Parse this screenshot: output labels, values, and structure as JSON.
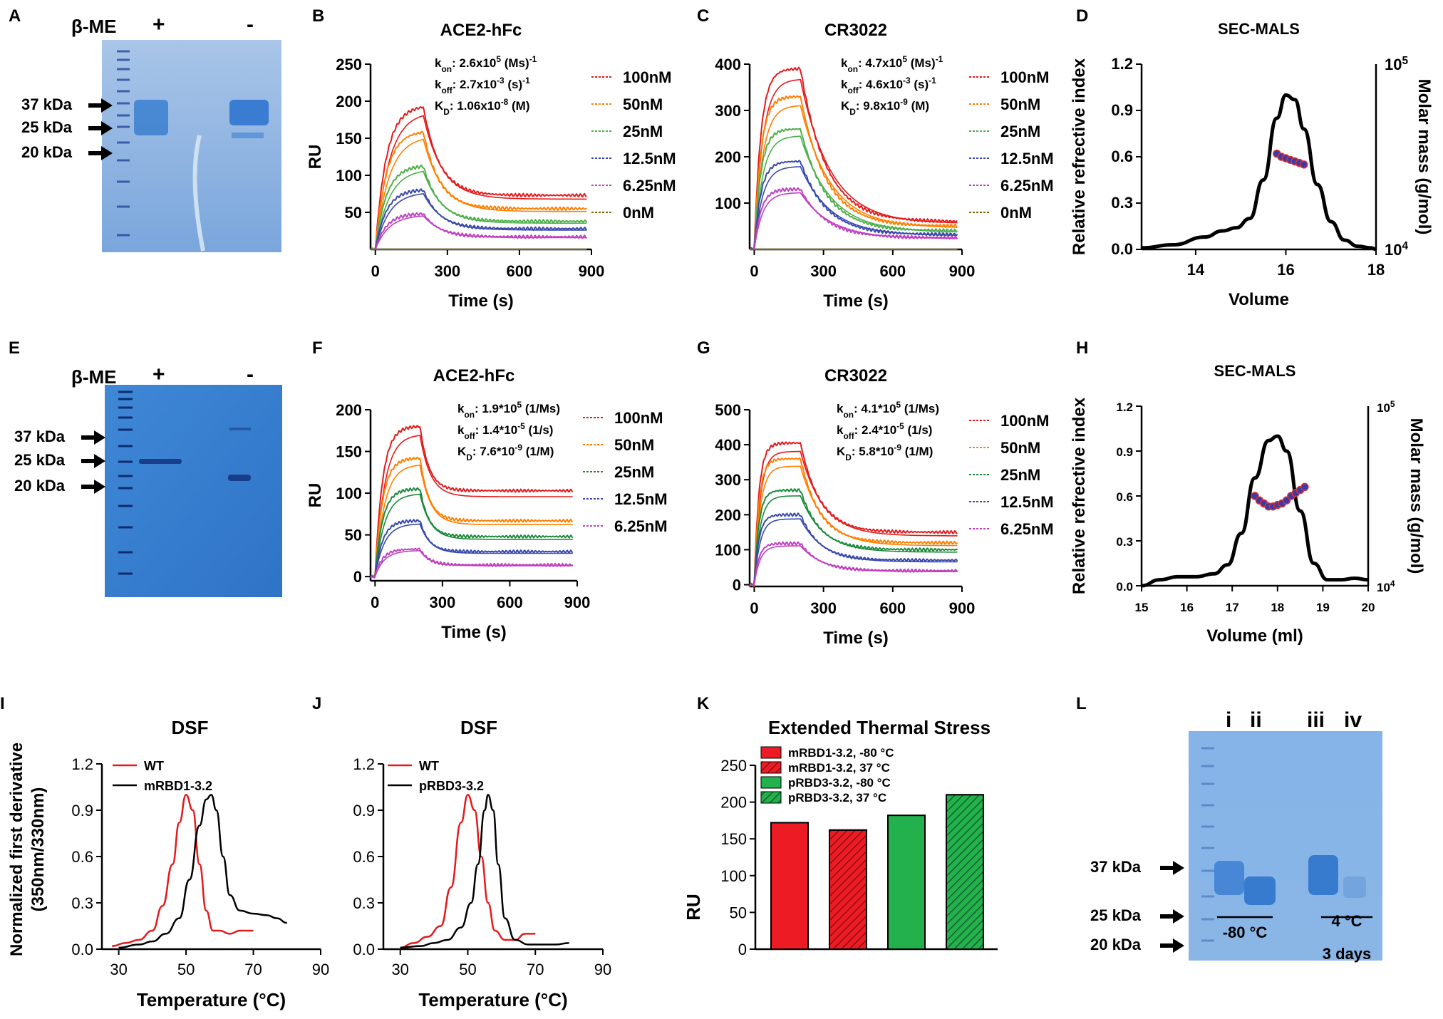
{
  "figure": {
    "panel_letters": [
      "A",
      "B",
      "C",
      "D",
      "E",
      "F",
      "G",
      "H",
      "I",
      "J",
      "K",
      "L"
    ],
    "gels": {
      "A": {
        "header": "β-ME",
        "lanes": [
          "+",
          "-"
        ],
        "markers": [
          "37 kDa",
          "25 kDa",
          "20 kDa"
        ]
      },
      "E": {
        "header": "β-ME",
        "lanes": [
          "+",
          "-"
        ],
        "markers": [
          "37 kDa",
          "25 kDa",
          "20 kDa"
        ]
      },
      "L": {
        "lanes": [
          "i",
          "ii",
          "iii",
          "iv"
        ],
        "markers": [
          "37 kDa",
          "25 kDa",
          "20 kDa"
        ],
        "group1": "-80 °C",
        "group2": "4 °C",
        "group2_sub": "3 days"
      }
    }
  },
  "chart_data": [
    {
      "id": "B",
      "type": "line",
      "title": "ACE2-hFc",
      "xlabel": "Time (s)",
      "ylabel": "RU",
      "xlim": [
        -20,
        900
      ],
      "ylim": [
        0,
        250
      ],
      "xticks": [
        "0",
        "300",
        "600",
        "900"
      ],
      "yticks": [
        "50",
        "100",
        "150",
        "200",
        "250"
      ],
      "kinetics": {
        "kon": "k<sub>on</sub>: 2.6x10<sup>5</sup> (Ms)<sup>-1</sup>",
        "koff": "k<sub>off</sub>: 2.7x10<sup>-3</sup> (s)<sup>-1</sup>",
        "kd": "K<sub>D</sub>: 1.06x10<sup>-8</sup> (M)"
      },
      "model": {
        "t_assoc": 200,
        "k_assoc": 0.022
      },
      "series": [
        {
          "name": "100nM",
          "color": "#e41a1c",
          "peak": 192,
          "plateau": 73,
          "k_dis": 0.015
        },
        {
          "name": "50nM",
          "color": "#ff7f00",
          "peak": 158,
          "plateau": 55,
          "k_dis": 0.015
        },
        {
          "name": "25nM",
          "color": "#4daf4a",
          "peak": 112,
          "plateau": 38,
          "k_dis": 0.015
        },
        {
          "name": "12.5nM",
          "color": "#3949ab",
          "peak": 80,
          "plateau": 28,
          "k_dis": 0.015
        },
        {
          "name": "6.25nM",
          "color": "#c040c0",
          "peak": 48,
          "plateau": 17,
          "k_dis": 0.015
        },
        {
          "name": "0nM",
          "color": "#7a6a00",
          "peak": 0,
          "plateau": 0,
          "k_dis": 0.015
        }
      ]
    },
    {
      "id": "C",
      "type": "line",
      "title": "CR3022",
      "xlabel": "Time (s)",
      "ylabel": "",
      "xlim": [
        -20,
        900
      ],
      "ylim": [
        0,
        400
      ],
      "xticks": [
        "0",
        "300",
        "600",
        "900"
      ],
      "yticks": [
        "100",
        "200",
        "300",
        "400"
      ],
      "kinetics": {
        "kon": "k<sub>on</sub>: 4.7x10<sup>5</sup> (Ms)<sup>-1</sup>",
        "koff": "k<sub>off</sub>: 4.6x10<sup>-3</sup> (s)<sup>-1</sup>",
        "kd": "K<sub>D</sub>: 9.8x10<sup>-9</sup> (M)"
      },
      "model": {
        "t_assoc": 200,
        "k_assoc": 0.035
      },
      "series": [
        {
          "name": "100nM",
          "color": "#e41a1c",
          "peak": 390,
          "plateau": 60,
          "k_dis": 0.009
        },
        {
          "name": "50nM",
          "color": "#ff7f00",
          "peak": 330,
          "plateau": 50,
          "k_dis": 0.009
        },
        {
          "name": "25nM",
          "color": "#4daf4a",
          "peak": 260,
          "plateau": 40,
          "k_dis": 0.009
        },
        {
          "name": "12.5nM",
          "color": "#3949ab",
          "peak": 190,
          "plateau": 32,
          "k_dis": 0.009
        },
        {
          "name": "6.25nM",
          "color": "#c040c0",
          "peak": 130,
          "plateau": 25,
          "k_dis": 0.009
        },
        {
          "name": "0nM",
          "color": "#7a6a00",
          "peak": 0,
          "plateau": 0,
          "k_dis": 0.009
        }
      ]
    },
    {
      "id": "D",
      "type": "line",
      "title": "SEC-MALS",
      "xlabel": "Volume",
      "ylabel": "Relative refrective index",
      "y2label": "Molar mass (g/mol)",
      "xlim": [
        12.8,
        18
      ],
      "ylim": [
        0,
        1.2
      ],
      "xticks": [
        "14",
        "16",
        "18"
      ],
      "xtick_values": [
        14,
        16,
        18
      ],
      "yticks": [
        "0.0",
        "0.3",
        "0.6",
        "0.9",
        "1.2"
      ],
      "y2ticks": [
        "10<sup>4</sup>",
        "10<sup>5</sup>"
      ],
      "trace": {
        "x": [
          12.8,
          13.5,
          14.2,
          14.6,
          14.9,
          15.2,
          15.5,
          15.8,
          16.0,
          16.2,
          16.4,
          16.7,
          17.0,
          17.3,
          17.6,
          17.9,
          18.0
        ],
        "y": [
          0.01,
          0.03,
          0.08,
          0.12,
          0.14,
          0.2,
          0.45,
          0.85,
          1.0,
          0.97,
          0.78,
          0.42,
          0.18,
          0.06,
          0.02,
          0.01,
          0.0
        ]
      },
      "mass": {
        "x": [
          15.8,
          15.9,
          16.0,
          16.1,
          16.2,
          16.3,
          16.4
        ],
        "y": [
          0.62,
          0.6,
          0.59,
          0.58,
          0.57,
          0.56,
          0.55
        ]
      }
    },
    {
      "id": "F",
      "type": "line",
      "title": "ACE2-hFc",
      "xlabel": "Time (s)",
      "ylabel": "RU",
      "xlim": [
        -20,
        900
      ],
      "ylim": [
        -5,
        200
      ],
      "xticks": [
        "0",
        "300",
        "600",
        "900"
      ],
      "yticks": [
        "0",
        "50",
        "100",
        "150",
        "200"
      ],
      "kinetics": {
        "kon": "k<sub>on</sub>: 1.9*10<sup>5</sup> (1/Ms)",
        "koff": "k<sub>off</sub>: 1.4*10<sup>-5</sup> (1/s)",
        "kd": "K<sub>D</sub>: 7.6*10<sup>-9</sup> (1/M)"
      },
      "model": {
        "t_assoc": 200,
        "k_assoc": 0.03
      },
      "series": [
        {
          "name": "100nM",
          "color": "#e41a1c",
          "peak": 180,
          "plateau": 103,
          "k_dis": 0.025
        },
        {
          "name": "50nM",
          "color": "#ff7f00",
          "peak": 142,
          "plateau": 67,
          "k_dis": 0.025
        },
        {
          "name": "25nM",
          "color": "#1a8a3a",
          "peak": 105,
          "plateau": 48,
          "k_dis": 0.025
        },
        {
          "name": "12.5nM",
          "color": "#3949ab",
          "peak": 67,
          "plateau": 30,
          "k_dis": 0.025
        },
        {
          "name": "6.25nM",
          "color": "#c040c0",
          "peak": 33,
          "plateau": 14,
          "k_dis": 0.025
        }
      ]
    },
    {
      "id": "G",
      "type": "line",
      "title": "CR3022",
      "xlabel": "Time (s)",
      "ylabel": "",
      "xlim": [
        -20,
        900
      ],
      "ylim": [
        -5,
        500
      ],
      "xticks": [
        "0",
        "300",
        "600",
        "900"
      ],
      "yticks": [
        "0",
        "100",
        "200",
        "300",
        "400",
        "500"
      ],
      "kinetics": {
        "kon": "k<sub>on</sub>: 4.1*10<sup>5</sup> (1/Ms)",
        "koff": "k<sub>off</sub>: 2.4*10<sup>-5</sup> (1/s)",
        "kd": "K<sub>D</sub>: 5.8*10<sup>-9</sup> (1/M)"
      },
      "model": {
        "t_assoc": 200,
        "k_assoc": 0.05
      },
      "series": [
        {
          "name": "100nM",
          "color": "#e41a1c",
          "peak": 405,
          "plateau": 150,
          "k_dis": 0.012
        },
        {
          "name": "50nM",
          "color": "#ff7f00",
          "peak": 360,
          "plateau": 120,
          "k_dis": 0.012
        },
        {
          "name": "25nM",
          "color": "#1a8a3a",
          "peak": 270,
          "plateau": 100,
          "k_dis": 0.012
        },
        {
          "name": "12.5nM",
          "color": "#3949ab",
          "peak": 200,
          "plateau": 70,
          "k_dis": 0.012
        },
        {
          "name": "6.25nM",
          "color": "#c040c0",
          "peak": 118,
          "plateau": 40,
          "k_dis": 0.012
        }
      ]
    },
    {
      "id": "H",
      "type": "line",
      "title": "SEC-MALS",
      "xlabel": "Volume (ml)",
      "ylabel": "Relative refrective index",
      "y2label": "Molar mass (g/mol)",
      "xlim": [
        15,
        20
      ],
      "ylim": [
        0,
        1.2
      ],
      "xticks": [
        "15",
        "16",
        "17",
        "18",
        "19",
        "20"
      ],
      "xtick_values": [
        15,
        16,
        17,
        18,
        19,
        20
      ],
      "yticks": [
        "0.0",
        "0.3",
        "0.6",
        "0.9",
        "1.2"
      ],
      "y2ticks": [
        "10<sup>4</sup>",
        "10<sup>5</sup>"
      ],
      "trace": {
        "x": [
          15.0,
          15.4,
          15.8,
          16.2,
          16.6,
          16.9,
          17.2,
          17.5,
          17.8,
          18.0,
          18.2,
          18.5,
          18.8,
          19.1,
          19.4,
          19.7,
          20.0
        ],
        "y": [
          0.0,
          0.04,
          0.06,
          0.06,
          0.08,
          0.14,
          0.35,
          0.72,
          0.97,
          1.0,
          0.9,
          0.5,
          0.15,
          0.04,
          0.04,
          0.05,
          0.04
        ]
      },
      "mass": {
        "x": [
          17.5,
          17.6,
          17.7,
          17.8,
          17.9,
          18.0,
          18.1,
          18.2,
          18.3,
          18.4,
          18.5,
          18.6
        ],
        "y": [
          0.6,
          0.57,
          0.55,
          0.53,
          0.53,
          0.54,
          0.55,
          0.57,
          0.6,
          0.62,
          0.64,
          0.66
        ]
      }
    },
    {
      "id": "I",
      "type": "line",
      "title": "DSF",
      "xlabel": "Temperature (°C)",
      "ylabel": "Normalized first derivative",
      "ylabel2": "(350nm/330nm)",
      "xlim": [
        25,
        90
      ],
      "ylim": [
        0,
        1.2
      ],
      "xticks": [
        "30",
        "50",
        "70",
        "90"
      ],
      "xtick_values": [
        30,
        50,
        70,
        90
      ],
      "yticks": [
        "0.0",
        "0.3",
        "0.6",
        "0.9",
        "1.2"
      ],
      "series": [
        {
          "name": "WT",
          "color": "#e41a1c",
          "x": [
            28,
            32,
            36,
            40,
            43,
            46,
            48,
            50,
            52,
            54,
            56,
            58,
            60,
            63,
            66,
            70
          ],
          "y": [
            0.02,
            0.04,
            0.06,
            0.12,
            0.28,
            0.55,
            0.82,
            1.0,
            0.9,
            0.55,
            0.25,
            0.12,
            0.12,
            0.1,
            0.12,
            0.12
          ]
        },
        {
          "name": "mRBD1-3.2",
          "color": "#000000",
          "x": [
            30,
            36,
            40,
            44,
            48,
            51,
            54,
            56,
            57.5,
            59,
            61,
            63,
            66,
            70,
            74,
            77,
            80
          ],
          "y": [
            0.01,
            0.03,
            0.05,
            0.1,
            0.2,
            0.45,
            0.8,
            0.97,
            1.0,
            0.9,
            0.6,
            0.35,
            0.25,
            0.23,
            0.22,
            0.2,
            0.17
          ]
        }
      ]
    },
    {
      "id": "J",
      "type": "line",
      "title": "DSF",
      "xlabel": "Temperature (°C)",
      "ylabel": "",
      "xlim": [
        25,
        90
      ],
      "ylim": [
        0,
        1.2
      ],
      "xticks": [
        "30",
        "50",
        "70",
        "90"
      ],
      "xtick_values": [
        30,
        50,
        70,
        90
      ],
      "yticks": [
        "0.0",
        "0.3",
        "0.6",
        "0.9",
        "1.2"
      ],
      "series": [
        {
          "name": "WT",
          "color": "#e41a1c",
          "x": [
            30,
            34,
            38,
            42,
            45,
            48,
            50,
            52,
            54,
            56,
            58,
            61,
            64,
            67,
            70
          ],
          "y": [
            0.01,
            0.04,
            0.08,
            0.15,
            0.4,
            0.82,
            1.0,
            0.9,
            0.6,
            0.3,
            0.12,
            0.06,
            0.06,
            0.1,
            0.1
          ]
        },
        {
          "name": "pRBD3-3.2",
          "color": "#000000",
          "x": [
            30,
            36,
            40,
            44,
            48,
            51,
            53,
            55,
            56,
            57.5,
            59,
            61,
            64,
            68,
            72,
            76,
            80
          ],
          "y": [
            0.01,
            0.02,
            0.04,
            0.06,
            0.14,
            0.3,
            0.55,
            0.9,
            1.0,
            0.9,
            0.55,
            0.2,
            0.06,
            0.03,
            0.03,
            0.03,
            0.04
          ]
        }
      ]
    },
    {
      "id": "K",
      "type": "bar",
      "title": "Extended Thermal Stress",
      "xlabel": "",
      "ylabel": "RU",
      "ylim": [
        0,
        250
      ],
      "yticks": [
        "0",
        "50",
        "100",
        "150",
        "200",
        "250"
      ],
      "categories": [
        "mRBD1-3.2, -80 °C",
        "mRBD1-3.2, 37 °C",
        "pRBD3-3.2, -80 °C",
        "pRBD3-3.2, 37 °C"
      ],
      "values": [
        172,
        162,
        182,
        210
      ],
      "colors": [
        "#ed1c24",
        "#ed1c24",
        "#22b14c",
        "#22b14c"
      ],
      "hatched": [
        false,
        true,
        false,
        true
      ]
    }
  ]
}
